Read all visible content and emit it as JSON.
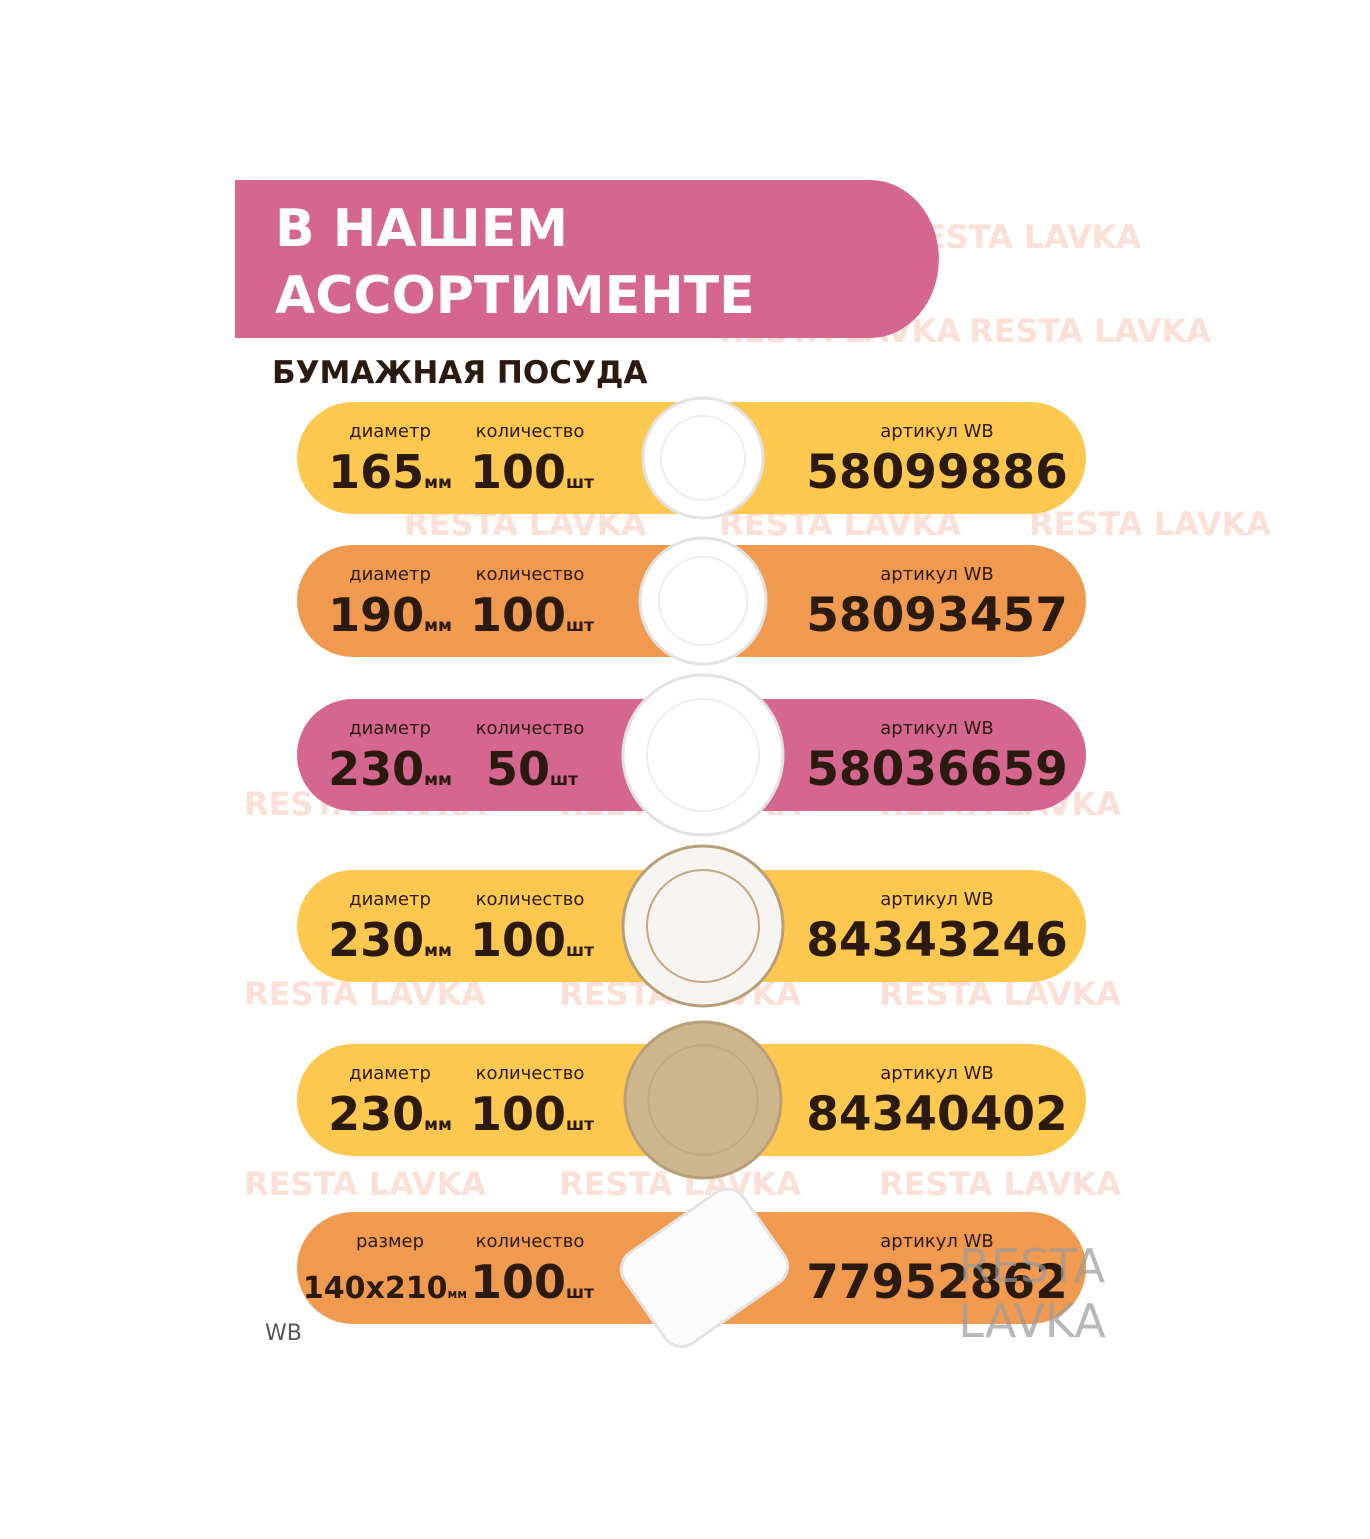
{
  "header": {
    "title_lines": [
      "В НАШЕМ",
      "АССОРТИМЕНТЕ"
    ],
    "subtitle": "БУМАЖНАЯ ПОСУДА"
  },
  "rows": [
    {
      "size_label": "диаметр",
      "size_value": "165",
      "size_unit": "мм",
      "qty_label": "количество",
      "qty_value": "100",
      "qty_unit": "шт",
      "article_label": "артикул WB",
      "article": "58099886"
    },
    {
      "size_label": "диаметр",
      "size_value": "190",
      "size_unit": "мм",
      "qty_label": "количество",
      "qty_value": "100",
      "qty_unit": "шт",
      "article_label": "артикул WB",
      "article": "58093457"
    },
    {
      "size_label": "диаметр",
      "size_value": "230",
      "size_unit": "мм",
      "qty_label": "количество",
      "qty_value": "50",
      "qty_unit": "шт",
      "article_label": "артикул WB",
      "article": "58036659"
    },
    {
      "size_label": "диаметр",
      "size_value": "230",
      "size_unit": "мм",
      "qty_label": "количество",
      "qty_value": "100",
      "qty_unit": "шт",
      "article_label": "артикул WB",
      "article": "84343246"
    },
    {
      "size_label": "диаметр",
      "size_value": "230",
      "size_unit": "мм",
      "qty_label": "количество",
      "qty_value": "100",
      "qty_unit": "шт",
      "article_label": "артикул WB",
      "article": "84340402"
    },
    {
      "size_label": "размер",
      "size_value": "140x210",
      "size_unit": "мм",
      "qty_label": "количество",
      "qty_value": "100",
      "qty_unit": "шт",
      "article_label": "артикул WB",
      "article": "77952862"
    }
  ],
  "watermark": "RESTA LAVKA",
  "footer": {
    "marketplace": "WB",
    "brand_lines": [
      "RESTA",
      "LAVKA"
    ]
  }
}
